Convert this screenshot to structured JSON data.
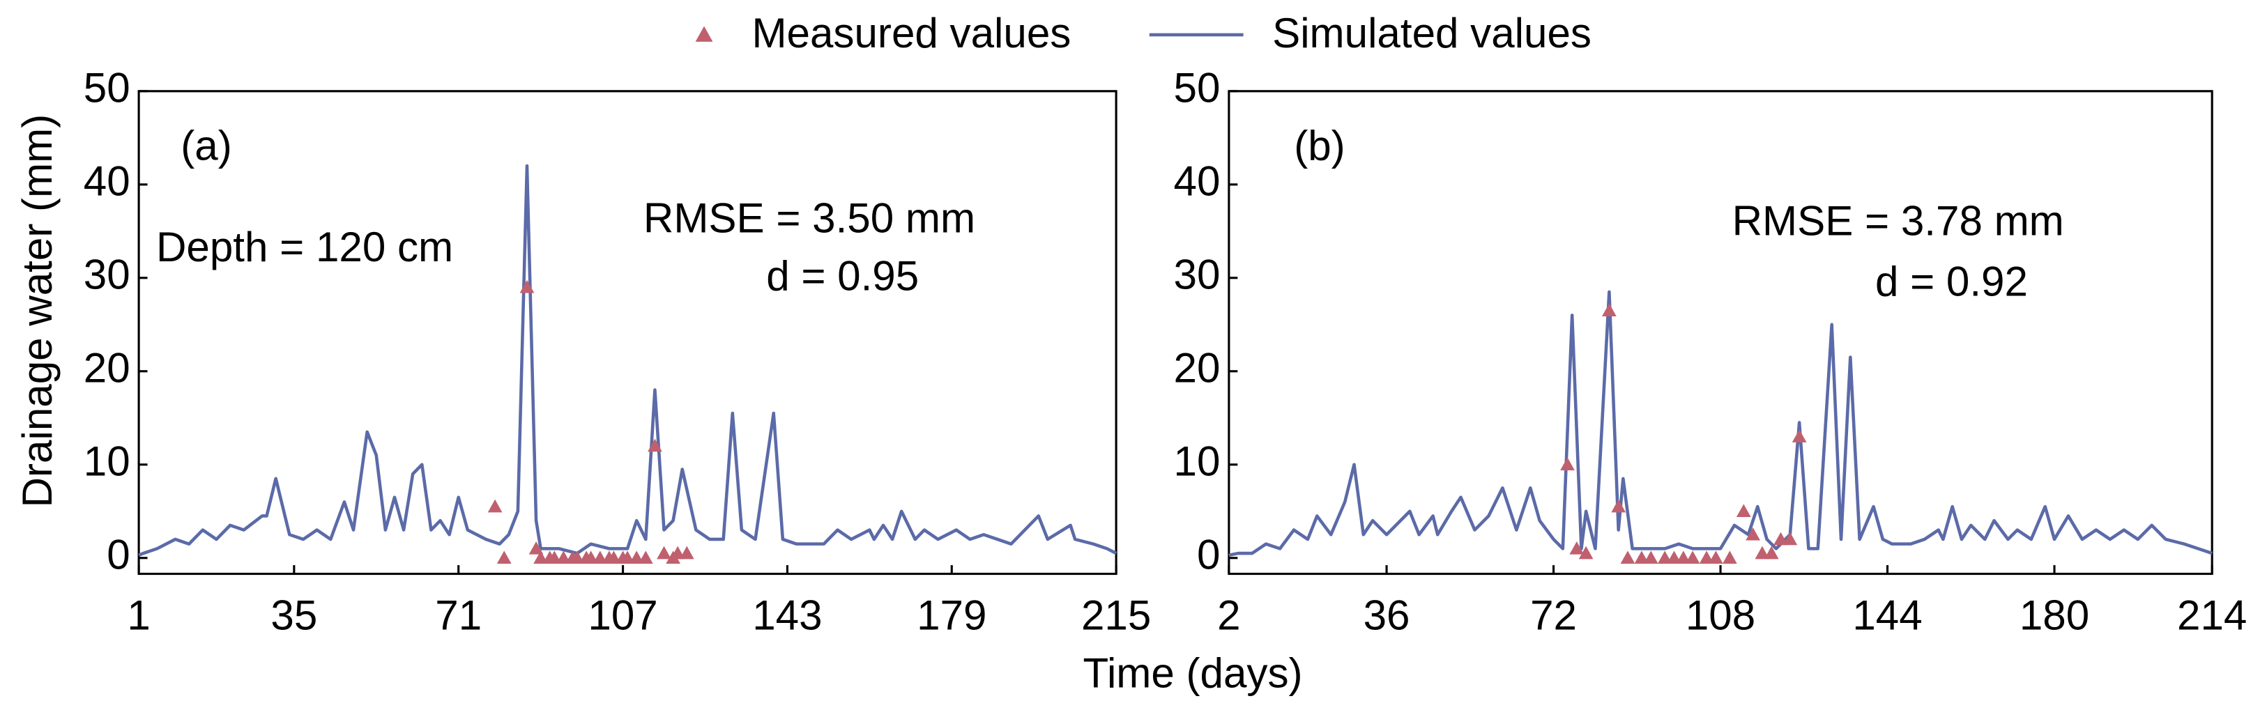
{
  "ylabel": "Drainage water (mm)",
  "xlabel": "Time (days)",
  "chart_data": [
    {
      "type": "line",
      "annotations": [
        "(a)",
        "Depth = 120 cm",
        "RMSE = 3.50 mm",
        "d = 0.95"
      ],
      "xlim": [
        1,
        215
      ],
      "xticks": [
        1,
        35,
        71,
        107,
        143,
        179,
        215
      ],
      "ylim": [
        -1.7,
        50
      ],
      "yticks": [
        0,
        10,
        20,
        30,
        40,
        50
      ],
      "grid": false,
      "series": [
        {
          "name": "Measured values",
          "color": "#c0606e",
          "marker": "triangle",
          "x": [
            79,
            81,
            86,
            88,
            89,
            91,
            92,
            94,
            96,
            97,
            99,
            100,
            102,
            104,
            105,
            107,
            108,
            110,
            112,
            114,
            116,
            118,
            119,
            121
          ],
          "values": [
            5.5,
            0,
            29,
            1,
            0,
            0,
            0,
            0,
            0,
            0,
            0,
            0,
            0,
            0,
            0,
            0,
            0,
            0,
            0,
            12,
            0.5,
            0,
            0.5,
            0.5
          ]
        },
        {
          "name": "Simulated values",
          "color": "#5b6aa8",
          "x": [
            1,
            2,
            5,
            9,
            12,
            15,
            18,
            21,
            24,
            28,
            29,
            31,
            34,
            37,
            40,
            43,
            46,
            48,
            51,
            53,
            55,
            57,
            59,
            61,
            63,
            65,
            67,
            69,
            71,
            73,
            77,
            80,
            82,
            84,
            86,
            88,
            89,
            93,
            97,
            100,
            104,
            108,
            110,
            112,
            114,
            116,
            118,
            120,
            123,
            126,
            129,
            131,
            133,
            136,
            140,
            142,
            145,
            148,
            151,
            154,
            157,
            161,
            162,
            164,
            166,
            168,
            171,
            173,
            176,
            180,
            183,
            186,
            189,
            192,
            198,
            200,
            205,
            206,
            210,
            213,
            215
          ],
          "values": [
            0.3,
            0.5,
            1,
            2,
            1.5,
            3,
            2,
            3.5,
            3,
            4.5,
            4.5,
            8.5,
            2.5,
            2,
            3,
            2,
            6,
            3,
            13.5,
            11,
            3,
            6.5,
            3,
            9,
            10,
            3,
            4,
            2.5,
            6.5,
            3,
            2,
            1.5,
            2.5,
            5,
            42,
            4,
            1,
            1,
            0.5,
            1.5,
            1,
            1,
            4,
            2,
            18,
            3,
            4,
            9.5,
            3,
            2,
            2,
            15.5,
            3,
            2,
            15.5,
            2,
            1.5,
            1.5,
            1.5,
            3,
            2,
            3,
            2,
            3.5,
            2,
            5,
            2,
            3,
            2,
            3,
            2,
            2.5,
            2,
            1.5,
            4.5,
            2,
            3.5,
            2,
            1.5,
            1,
            0.5
          ]
        }
      ]
    },
    {
      "type": "line",
      "annotations": [
        "(b)",
        "RMSE = 3.78 mm",
        "d = 0.92"
      ],
      "xlim": [
        2,
        214
      ],
      "xticks": [
        2,
        36,
        72,
        108,
        144,
        180,
        214
      ],
      "ylim": [
        -1.7,
        50
      ],
      "yticks": [
        0,
        10,
        20,
        30,
        40,
        50
      ],
      "grid": false,
      "series": [
        {
          "name": "Measured values",
          "color": "#c0606e",
          "marker": "triangle",
          "x": [
            75,
            77,
            79,
            84,
            86,
            88,
            91,
            93,
            96,
            98,
            100,
            102,
            105,
            107,
            110,
            113,
            115,
            117,
            119,
            121,
            123,
            125
          ],
          "values": [
            10,
            1,
            0.5,
            26.5,
            5.5,
            0,
            0,
            0,
            0,
            0,
            0,
            0,
            0,
            0,
            0,
            5,
            2.5,
            0.5,
            0.5,
            2,
            2,
            13
          ]
        },
        {
          "name": "Simulated values",
          "color": "#5b6aa8",
          "x": [
            2,
            4,
            7,
            10,
            13,
            16,
            19,
            21,
            24,
            27,
            29,
            31,
            33,
            36,
            41,
            43,
            46,
            47,
            50,
            52,
            55,
            58,
            61,
            64,
            67,
            69,
            72,
            74,
            76,
            78,
            79,
            81,
            84,
            86,
            87,
            89,
            92,
            96,
            99,
            102,
            105,
            108,
            111,
            114,
            116,
            118,
            120,
            123,
            125,
            127,
            129,
            132,
            134,
            136,
            138,
            141,
            143,
            145,
            149,
            152,
            155,
            156,
            158,
            160,
            162,
            165,
            167,
            170,
            172,
            175,
            178,
            180,
            183,
            186,
            189,
            192,
            195,
            198,
            201,
            204,
            208,
            211,
            214
          ],
          "values": [
            0.3,
            0.5,
            0.5,
            1.5,
            1,
            3,
            2,
            4.5,
            2.5,
            6,
            10,
            2.5,
            4,
            2.5,
            5,
            2.5,
            4.5,
            2.5,
            5,
            6.5,
            3,
            4.5,
            7.5,
            3,
            7.5,
            4,
            2,
            1,
            26,
            1,
            5,
            1,
            28.5,
            3,
            8.5,
            1,
            1,
            1,
            1.5,
            1,
            1,
            1,
            3.5,
            2.5,
            5.5,
            2,
            1,
            2.5,
            14.5,
            1,
            1,
            25,
            2,
            21.5,
            2,
            5.5,
            2,
            1.5,
            1.5,
            2,
            3,
            2,
            5.5,
            2,
            3.5,
            2,
            4,
            2,
            3,
            2,
            5.5,
            2,
            4.5,
            2,
            3,
            2,
            3,
            2,
            3.5,
            2,
            1.5,
            1,
            0.5
          ]
        }
      ]
    }
  ]
}
